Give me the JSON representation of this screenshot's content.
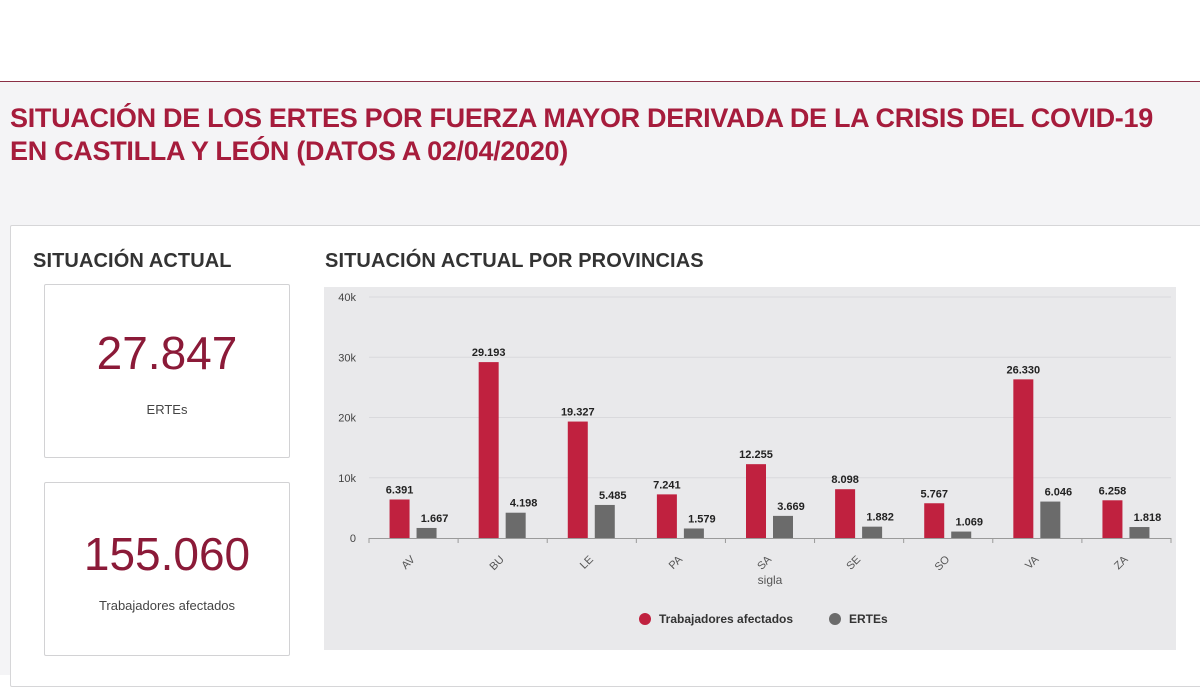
{
  "page": {
    "title_line1": "SITUACIÓN DE LOS ERTES POR FUERZA MAYOR DERIVADA DE LA CRISIS DEL COVID-19",
    "title_line2": "EN CASTILLA Y LEÓN (DATOS A 02/04/2020)"
  },
  "left": {
    "heading": "SITUACIÓN ACTUAL",
    "kpis": [
      {
        "value": "27.847",
        "label": "ERTEs"
      },
      {
        "value": "155.060",
        "label": "Trabajadores afectados"
      }
    ]
  },
  "right": {
    "heading": "SITUACIÓN ACTUAL POR PROVINCIAS"
  },
  "colors": {
    "accent": "#a61c3c",
    "series1": "#c0213f",
    "series2": "#6b6b6b",
    "plot_bg": "#e9e9eb"
  },
  "chart_data": {
    "type": "bar",
    "title": "SITUACIÓN ACTUAL POR PROVINCIAS",
    "xlabel": "sigla",
    "ylabel": "",
    "ylim": [
      0,
      40000
    ],
    "yticks": [
      0,
      10000,
      20000,
      30000,
      40000
    ],
    "ytick_labels": [
      "0",
      "10k",
      "20k",
      "30k",
      "40k"
    ],
    "categories": [
      "AV",
      "BU",
      "LE",
      "PA",
      "SA",
      "SE",
      "SO",
      "VA",
      "ZA"
    ],
    "legend_position": "bottom",
    "series": [
      {
        "name": "Trabajadores afectados",
        "values": [
          6391,
          29193,
          19327,
          7241,
          12255,
          8098,
          5767,
          26330,
          6258
        ],
        "labels": [
          "6.391",
          "29.193",
          "19.327",
          "7.241",
          "12.255",
          "8.098",
          "5.767",
          "26.330",
          "6.258"
        ]
      },
      {
        "name": "ERTEs",
        "values": [
          1667,
          4198,
          5485,
          1579,
          3669,
          1882,
          1069,
          6046,
          1818
        ],
        "labels": [
          "1.667",
          "4.198",
          "5.485",
          "1.579",
          "3.669",
          "1.882",
          "1.069",
          "6.046",
          "1.818"
        ]
      }
    ]
  }
}
